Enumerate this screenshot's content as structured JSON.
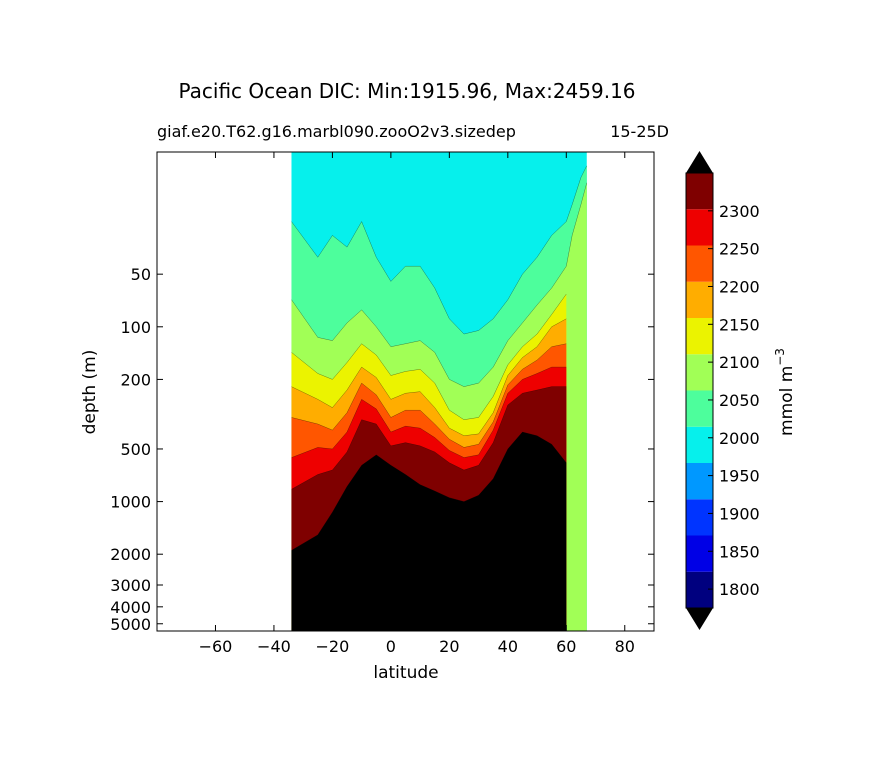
{
  "chart_data": {
    "type": "filled-contour",
    "title": "Pacific Ocean DIC: Min:1915.96, Max:2459.16",
    "subtitle_left": "giaf.e20.T62.g16.marbl090.zooO2v3.sizedep",
    "subtitle_right": "15-25D",
    "xlabel": "latitude",
    "ylabel": "depth (m)",
    "xlim": [
      -80,
      90
    ],
    "ylim": [
      5500,
      10
    ],
    "xticks": [
      "−60",
      "−40",
      "−20",
      "0",
      "20",
      "40",
      "60",
      "80"
    ],
    "xtick_values": [
      -60,
      -40,
      -20,
      0,
      20,
      40,
      60,
      80
    ],
    "yticks": [
      "50",
      "100",
      "200",
      "500",
      "1000",
      "2000",
      "3000",
      "4000",
      "5000"
    ],
    "ytick_values": [
      50,
      100,
      200,
      500,
      1000,
      2000,
      3000,
      4000,
      5000
    ],
    "data_extent": {
      "lat_min": -34,
      "lat_max": 67
    },
    "colorbar": {
      "label": "mmol m",
      "label_exponent": "−3",
      "levels": [
        1775,
        1800,
        1850,
        1900,
        1950,
        2000,
        2050,
        2100,
        2150,
        2200,
        2250,
        2300,
        2350
      ],
      "tick_labels": [
        "1800",
        "1850",
        "1900",
        "1950",
        "2000",
        "2050",
        "2100",
        "2150",
        "2200",
        "2250",
        "2300"
      ],
      "tick_values": [
        1800,
        1850,
        1900,
        1950,
        2000,
        2050,
        2100,
        2150,
        2200,
        2250,
        2300
      ],
      "colors": [
        "#00007f",
        "#0000e6",
        "#0034ff",
        "#0098ff",
        "#06f0ec",
        "#4dfe9c",
        "#a1ff56",
        "#ebf300",
        "#ffad00",
        "#ff5600",
        "#ee0000",
        "#7f0000"
      ],
      "under_color": "#000000",
      "over_color": "#000000"
    },
    "contour_bands": [
      {
        "name": "blue-1900",
        "color": "#0098ff",
        "upper_depth": [
          [
            -34,
            10
          ],
          [
            67,
            10
          ]
        ],
        "lower_depth": [
          [
            -34,
            10
          ],
          [
            67,
            10
          ]
        ]
      },
      {
        "name": "cyan-1950",
        "color": "#06f0ec",
        "upper_depth": [
          [
            -34,
            10
          ],
          [
            67,
            10
          ]
        ]
      },
      {
        "name": "green-2000",
        "color": "#4dfe9c"
      },
      {
        "name": "lime-2050",
        "color": "#a1ff56"
      },
      {
        "name": "yellow-2100",
        "color": "#ebf300"
      },
      {
        "name": "orange-2150",
        "color": "#ffad00"
      },
      {
        "name": "red-orange-2200",
        "color": "#ff5600"
      },
      {
        "name": "red-2250",
        "color": "#ee0000"
      },
      {
        "name": "dark-red-2300",
        "color": "#7f0000"
      },
      {
        "name": "over-2350",
        "color": "#000000"
      }
    ],
    "isolines": {
      "lat": [
        -34,
        -25,
        -20,
        -15,
        -10,
        -5,
        0,
        5,
        10,
        15,
        20,
        25,
        30,
        35,
        40,
        45,
        50,
        55,
        60,
        62,
        65,
        67
      ],
      "bottom_2000": [
        25,
        40,
        30,
        35,
        25,
        40,
        55,
        45,
        45,
        60,
        90,
        110,
        105,
        90,
        70,
        50,
        40,
        30,
        25,
        20,
        14,
        12
      ],
      "bottom_2050": [
        70,
        115,
        120,
        95,
        80,
        100,
        130,
        125,
        120,
        140,
        200,
        220,
        210,
        170,
        120,
        95,
        75,
        60,
        45,
        30,
        20,
        15
      ],
      "bottom_2100": [
        140,
        185,
        200,
        160,
        125,
        145,
        190,
        180,
        175,
        210,
        300,
        340,
        330,
        250,
        165,
        130,
        110,
        85,
        65
      ],
      "bottom_2150": [
        220,
        260,
        290,
        230,
        170,
        195,
        260,
        240,
        235,
        290,
        380,
        420,
        410,
        310,
        190,
        150,
        130,
        100,
        90
      ],
      "bottom_2200": [
        330,
        360,
        390,
        310,
        210,
        245,
        330,
        300,
        300,
        360,
        440,
        490,
        470,
        350,
        215,
        175,
        155,
        130,
        125
      ],
      "bottom_2250": [
        560,
        490,
        500,
        400,
        260,
        295,
        400,
        370,
        380,
        430,
        510,
        560,
        540,
        390,
        240,
        200,
        185,
        170,
        170
      ],
      "bottom_2300": [
        850,
        700,
        660,
        520,
        340,
        360,
        480,
        460,
        480,
        520,
        600,
        660,
        620,
        460,
        280,
        240,
        230,
        220,
        220
      ],
      "bottom_2350": [
        1900,
        1550,
        1150,
        820,
        620,
        540,
        620,
        700,
        800,
        870,
        950,
        1000,
        920,
        740,
        500,
        400,
        420,
        470,
        600
      ]
    }
  }
}
